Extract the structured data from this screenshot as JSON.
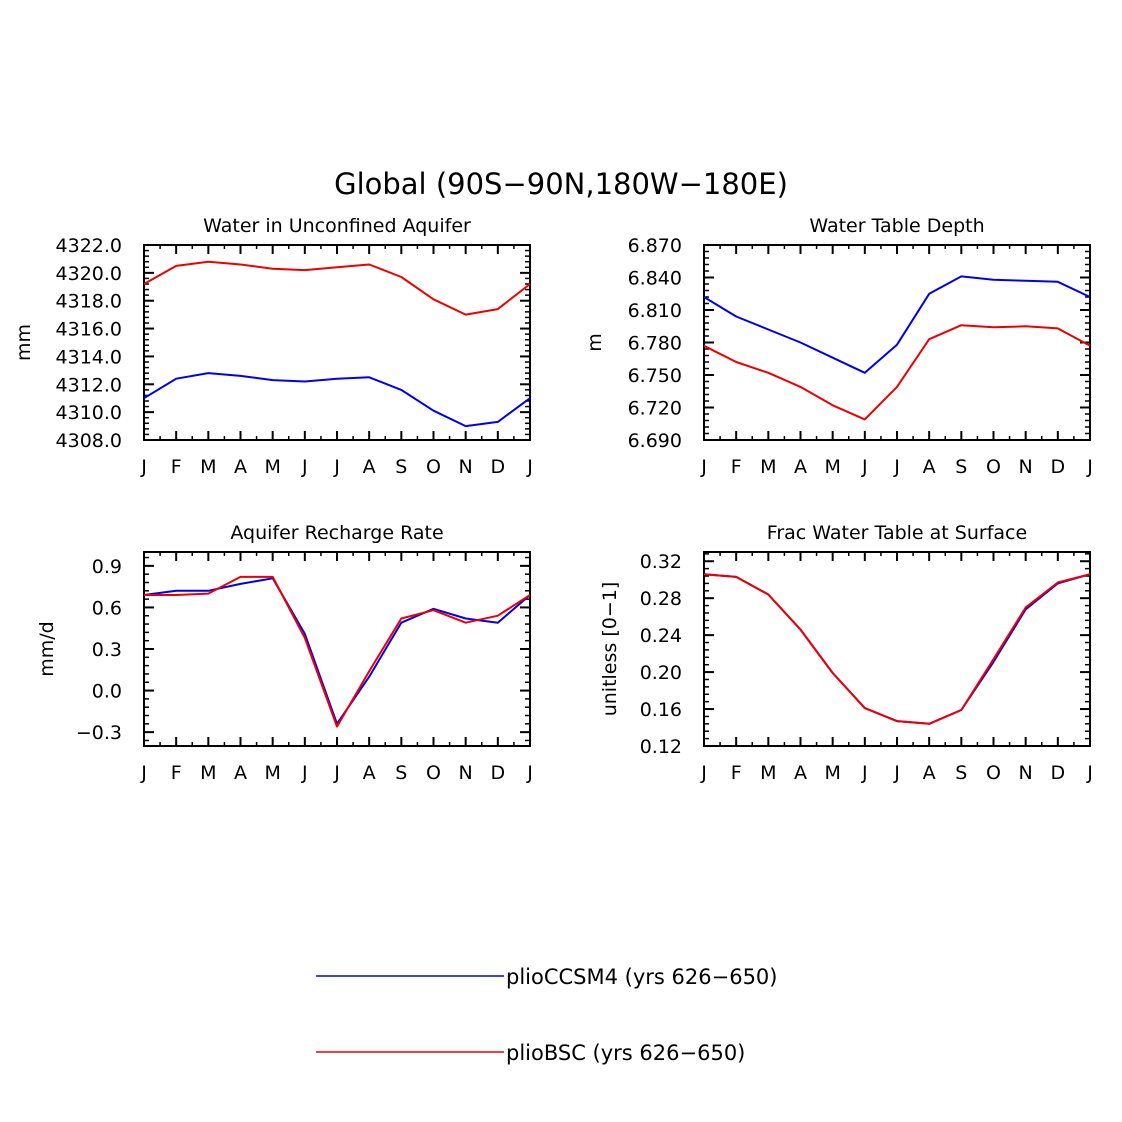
{
  "figure": {
    "title": "Global (90S−90N,180W−180E)"
  },
  "legend": {
    "entries": [
      {
        "label": "plioCCSM4 (yrs 626−650)",
        "color": "#0000ee"
      },
      {
        "label": "plioBSC (yrs 626−650)",
        "color": "#ee0000"
      }
    ]
  },
  "chart_data": [
    {
      "type": "line",
      "title": "Water in Unconfined Aquifer",
      "ylabel": "mm",
      "xlabel": "",
      "categories": [
        "J",
        "F",
        "M",
        "A",
        "M",
        "J",
        "J",
        "A",
        "S",
        "O",
        "N",
        "D",
        "J"
      ],
      "ylim": [
        4308.0,
        4322.0
      ],
      "yticks": [
        4308.0,
        4310.0,
        4312.0,
        4314.0,
        4316.0,
        4318.0,
        4320.0,
        4322.0
      ],
      "ytick_labels": [
        "4308.0",
        "4310.0",
        "4312.0",
        "4314.0",
        "4316.0",
        "4318.0",
        "4320.0",
        "4322.0"
      ],
      "series": [
        {
          "name": "plioCCSM4 (yrs 626−650)",
          "color": "#0000ee",
          "values": [
            4311.0,
            4312.4,
            4312.8,
            4312.6,
            4312.3,
            4312.2,
            4312.4,
            4312.5,
            4311.6,
            4310.1,
            4309.0,
            4309.3,
            4311.0
          ]
        },
        {
          "name": "plioBSC (yrs 626−650)",
          "color": "#ee0000",
          "values": [
            4319.2,
            4320.5,
            4320.8,
            4320.6,
            4320.3,
            4320.2,
            4320.4,
            4320.6,
            4319.7,
            4318.1,
            4317.0,
            4317.4,
            4319.2
          ]
        }
      ]
    },
    {
      "type": "line",
      "title": "Water Table Depth",
      "ylabel": "m",
      "xlabel": "",
      "categories": [
        "J",
        "F",
        "M",
        "A",
        "M",
        "J",
        "J",
        "A",
        "S",
        "O",
        "N",
        "D",
        "J"
      ],
      "ylim": [
        6.69,
        6.87
      ],
      "yticks": [
        6.69,
        6.72,
        6.75,
        6.78,
        6.81,
        6.84,
        6.87
      ],
      "ytick_labels": [
        "6.690",
        "6.720",
        "6.750",
        "6.780",
        "6.810",
        "6.840",
        "6.870"
      ],
      "series": [
        {
          "name": "plioCCSM4 (yrs 626−650)",
          "color": "#0000ee",
          "values": [
            6.822,
            6.804,
            6.792,
            6.78,
            6.766,
            6.752,
            6.778,
            6.825,
            6.841,
            6.838,
            6.837,
            6.836,
            6.822
          ]
        },
        {
          "name": "plioBSC (yrs 626−650)",
          "color": "#ee0000",
          "values": [
            6.777,
            6.762,
            6.752,
            6.739,
            6.722,
            6.709,
            6.739,
            6.783,
            6.796,
            6.794,
            6.795,
            6.793,
            6.777
          ]
        }
      ]
    },
    {
      "type": "line",
      "title": "Aquifer Recharge Rate",
      "ylabel": "mm/d",
      "xlabel": "",
      "categories": [
        "J",
        "F",
        "M",
        "A",
        "M",
        "J",
        "J",
        "A",
        "S",
        "O",
        "N",
        "D",
        "J"
      ],
      "ylim": [
        -0.4,
        1.0
      ],
      "yticks": [
        -0.3,
        0.0,
        0.3,
        0.6,
        0.9
      ],
      "ytick_labels": [
        "−0.3",
        "0.0",
        "0.3",
        "0.6",
        "0.9"
      ],
      "series": [
        {
          "name": "plioCCSM4 (yrs 626−650)",
          "color": "#0000ee",
          "values": [
            0.69,
            0.72,
            0.72,
            0.77,
            0.81,
            0.41,
            -0.24,
            0.1,
            0.49,
            0.59,
            0.52,
            0.49,
            0.69
          ]
        },
        {
          "name": "plioBSC (yrs 626−650)",
          "color": "#ee0000",
          "values": [
            0.69,
            0.69,
            0.7,
            0.82,
            0.82,
            0.38,
            -0.26,
            0.14,
            0.52,
            0.58,
            0.49,
            0.54,
            0.69
          ]
        }
      ]
    },
    {
      "type": "line",
      "title": "Frac Water Table at Surface",
      "ylabel": "unitless [0−1]",
      "xlabel": "",
      "categories": [
        "J",
        "F",
        "M",
        "A",
        "M",
        "J",
        "J",
        "A",
        "S",
        "O",
        "N",
        "D",
        "J"
      ],
      "ylim": [
        0.12,
        0.33
      ],
      "yticks": [
        0.12,
        0.16,
        0.2,
        0.24,
        0.28,
        0.32
      ],
      "ytick_labels": [
        "0.12",
        "0.16",
        "0.20",
        "0.24",
        "0.28",
        "0.32"
      ],
      "series": [
        {
          "name": "plioCCSM4 (yrs 626−650)",
          "color": "#0000ee",
          "values": [
            0.306,
            0.303,
            0.284,
            0.246,
            0.199,
            0.161,
            0.147,
            0.144,
            0.159,
            0.211,
            0.268,
            0.296,
            0.306
          ]
        },
        {
          "name": "plioBSC (yrs 626−650)",
          "color": "#ee0000",
          "values": [
            0.306,
            0.303,
            0.284,
            0.246,
            0.199,
            0.161,
            0.147,
            0.144,
            0.159,
            0.214,
            0.27,
            0.297,
            0.306
          ]
        }
      ]
    }
  ]
}
